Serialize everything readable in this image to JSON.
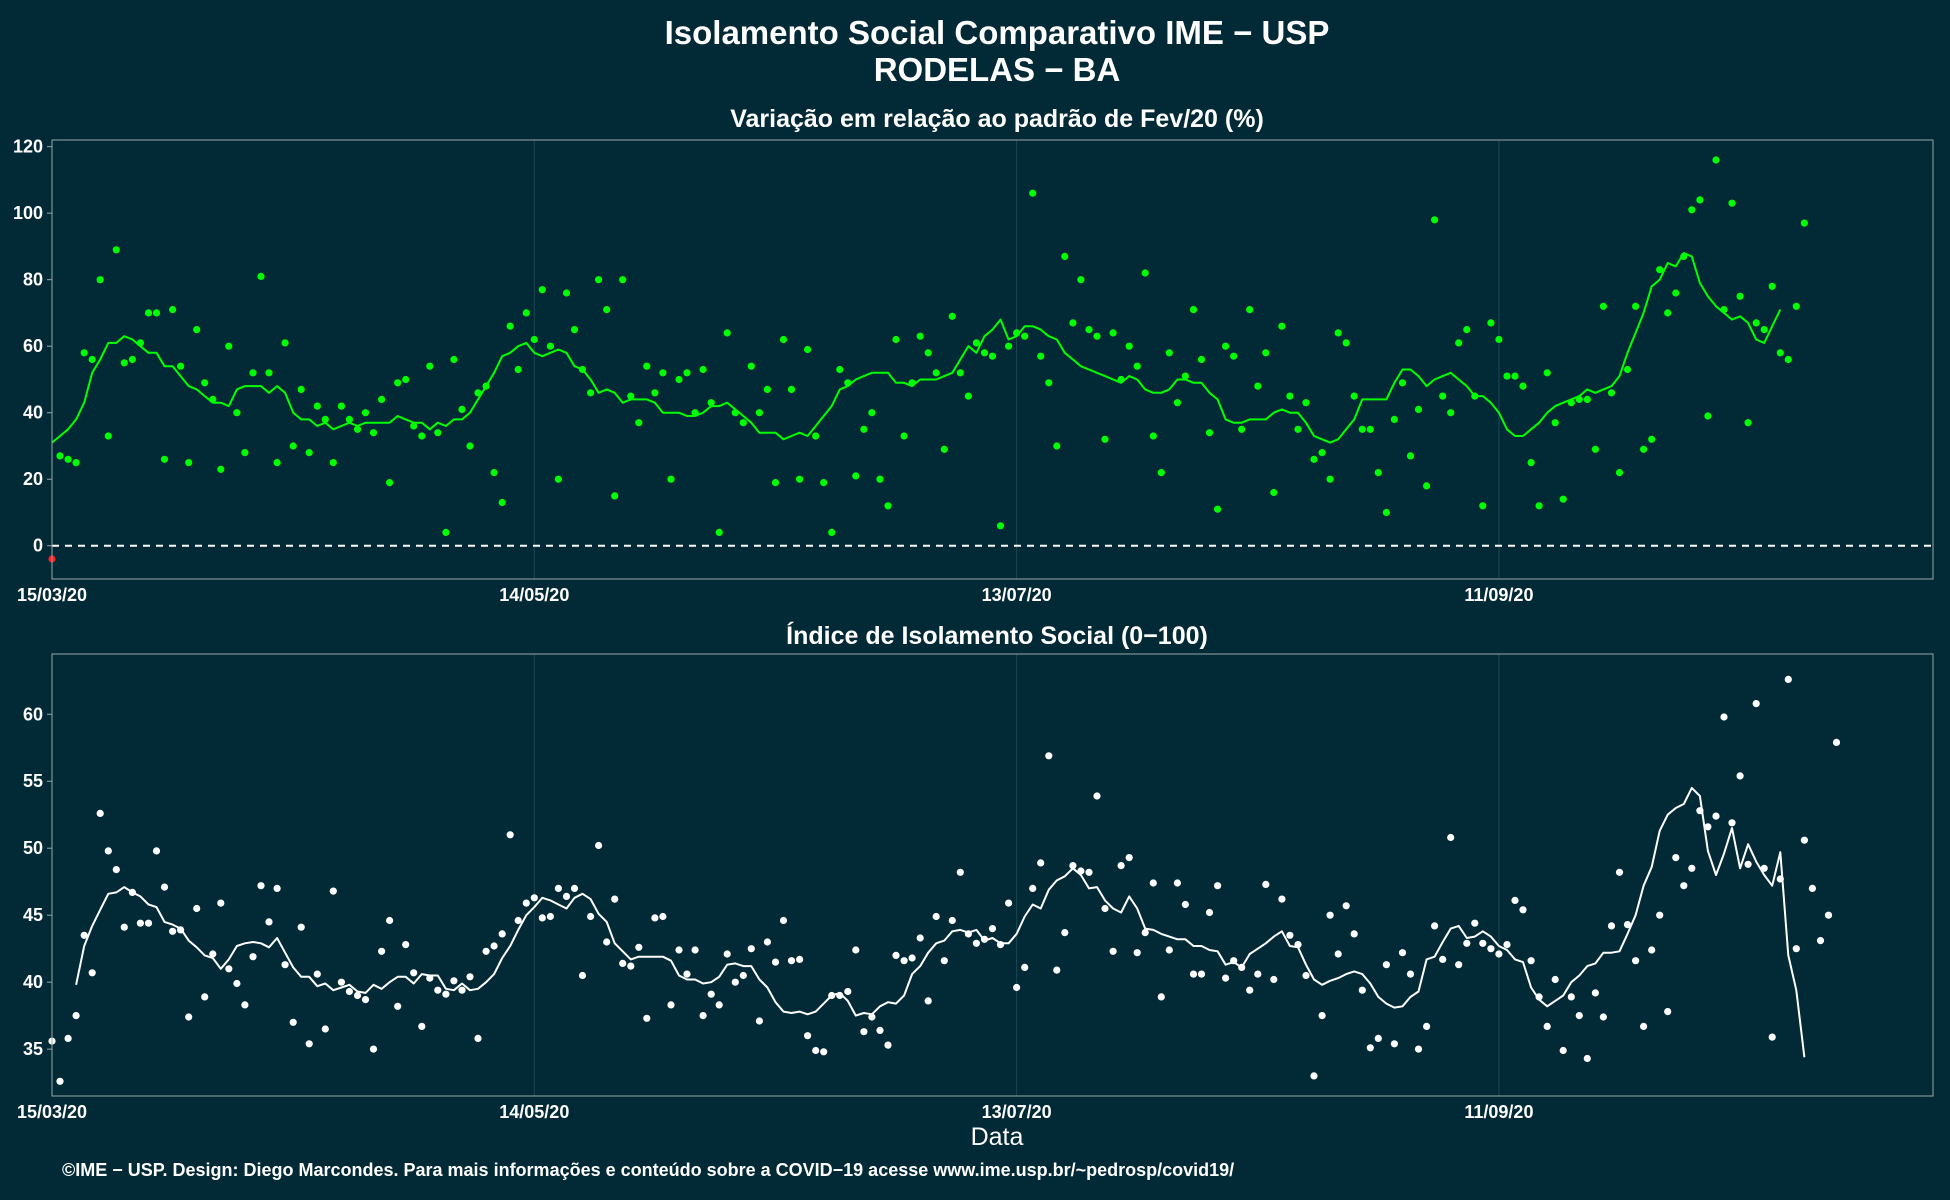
{
  "title_line1": "Isolamento Social Comparativo IME − USP",
  "title_line2": "RODELAS − BA",
  "xlabel": "Data",
  "caption": "©IME − USP. Design: Diego Marcondes. Para mais informações e conteúdo sobre a COVID−19 acesse www.ime.usp.br/~pedrosp/covid19/",
  "colors": {
    "background": "#022a36",
    "panel_border": "#9aa5ab",
    "grid": "#1c4652",
    "variation_series": "#00ff00",
    "negative_point": "#ff2020",
    "index_series": "#ffffff"
  },
  "chart_data": [
    {
      "type": "scatter",
      "title": "Variação em relação ao padrão de Fev/20 (%)",
      "ylim": [
        -10,
        122
      ],
      "yticks": [
        0,
        20,
        40,
        60,
        80,
        100,
        120
      ],
      "xlim": [
        "2020-03-15",
        "2020-11-04"
      ],
      "xticks": [
        "15/03/20",
        "14/05/20",
        "13/07/20",
        "11/09/20"
      ],
      "reference_line": 0,
      "negative_value_color": "red",
      "series": [
        {
          "type": "scatter",
          "x_start": "2020-03-15",
          "values": [
            -4,
            27,
            26,
            25,
            58,
            56,
            80,
            33,
            89,
            55,
            56,
            61,
            70,
            70,
            26,
            71,
            54,
            25,
            65,
            49,
            44,
            23,
            60,
            40,
            28,
            52,
            81,
            52,
            25,
            61,
            30,
            47,
            28,
            42,
            38,
            25,
            42,
            38,
            35,
            40,
            34,
            44,
            19,
            49,
            50,
            36,
            33,
            54,
            34,
            4,
            56,
            41,
            30,
            46,
            48,
            22,
            13,
            66,
            53,
            70,
            62,
            77,
            60,
            20,
            76,
            65,
            53,
            46,
            80,
            71,
            15,
            80,
            45,
            37,
            54,
            46,
            52,
            20,
            50,
            52,
            40,
            53,
            43,
            4,
            64,
            40,
            37,
            54,
            40,
            47,
            19,
            62,
            47,
            20,
            59,
            33,
            19,
            4,
            53,
            49,
            21,
            35,
            40,
            20,
            12,
            62,
            33,
            49,
            63,
            58,
            52,
            29,
            69,
            52,
            45,
            61,
            58,
            57,
            6,
            60,
            64,
            63,
            106,
            57,
            49,
            30,
            87,
            67,
            80,
            65,
            63,
            32,
            64,
            50,
            60,
            54,
            82,
            33,
            22,
            58,
            43,
            51,
            71,
            56,
            34,
            11,
            60,
            57,
            35,
            71,
            48,
            58,
            16,
            66,
            45,
            35,
            43,
            26,
            28,
            20,
            64,
            61,
            45,
            35,
            35,
            22,
            10,
            38,
            49,
            27,
            41,
            18,
            98,
            45,
            40,
            61,
            65,
            45,
            12,
            67,
            62,
            51,
            51,
            48,
            25,
            12,
            52,
            37,
            14,
            43,
            44,
            44,
            29,
            72,
            46,
            22,
            53,
            72,
            29,
            32,
            83,
            70,
            76,
            87,
            101,
            104,
            39,
            116,
            71,
            103,
            75,
            37,
            67,
            65,
            78,
            58,
            56,
            72,
            97
          ]
        },
        {
          "type": "line",
          "name": "",
          "x_start": "2020-03-15",
          "values": [
            31,
            33,
            35,
            38,
            43,
            52,
            56,
            61,
            61,
            63,
            62,
            60,
            58,
            58,
            54,
            54,
            51,
            48,
            47,
            45,
            43,
            43,
            42,
            47,
            48,
            48,
            48,
            46,
            48,
            46,
            40,
            38,
            38,
            36,
            37,
            35,
            36,
            37,
            36,
            37,
            37,
            37,
            37,
            39,
            38,
            37,
            37,
            35,
            37,
            36,
            38,
            38,
            40,
            44,
            48,
            52,
            57,
            58,
            60,
            61,
            58,
            57,
            58,
            59,
            58,
            54,
            53,
            50,
            46,
            47,
            46,
            43,
            44,
            44,
            44,
            43,
            40,
            40,
            40,
            39,
            39,
            40,
            42,
            42,
            43,
            41,
            39,
            37,
            34,
            34,
            34,
            32,
            33,
            34,
            33,
            36,
            39,
            42,
            47,
            48,
            50,
            51,
            52,
            52,
            52,
            49,
            49,
            48,
            50,
            50,
            50,
            51,
            52,
            56,
            60,
            58,
            63,
            65,
            68,
            62,
            63,
            66,
            66,
            65,
            63,
            62,
            58,
            56,
            54,
            53,
            52,
            51,
            50,
            49,
            51,
            50,
            47,
            46,
            46,
            47,
            50,
            50,
            49,
            49,
            46,
            44,
            38,
            37,
            37,
            38,
            38,
            38,
            40,
            41,
            40,
            40,
            37,
            33,
            32,
            31,
            32,
            35,
            38,
            44,
            44,
            44,
            44,
            49,
            53,
            53,
            51,
            48,
            50,
            51,
            52,
            50,
            48,
            45,
            45,
            43,
            40,
            35,
            33,
            33,
            35,
            37,
            40,
            42,
            43,
            44,
            45,
            47,
            46,
            47,
            48,
            51,
            58,
            64,
            70,
            78,
            80,
            85,
            84,
            88,
            87,
            79,
            75,
            72,
            70,
            68,
            69,
            67,
            62,
            61,
            66,
            71
          ]
        }
      ]
    },
    {
      "type": "scatter",
      "title": "Índice de Isolamento Social (0−100)",
      "xlabel": "Data",
      "ylim": [
        31.5,
        64.5
      ],
      "yticks": [
        35,
        40,
        45,
        50,
        55,
        60
      ],
      "xlim": [
        "2020-03-15",
        "2020-11-04"
      ],
      "xticks": [
        "15/03/20",
        "14/05/20",
        "13/07/20",
        "11/09/20"
      ],
      "series": [
        {
          "type": "scatter",
          "x_start": "2020-03-15",
          "values": [
            35.6,
            32.6,
            35.8,
            37.5,
            43.5,
            40.7,
            52.6,
            49.8,
            48.4,
            44.1,
            46.7,
            44.4,
            44.4,
            49.8,
            47.1,
            43.8,
            43.9,
            37.4,
            45.5,
            38.9,
            42.1,
            45.9,
            41.0,
            39.9,
            38.3,
            41.9,
            47.2,
            44.5,
            47.0,
            41.3,
            37.0,
            44.1,
            35.4,
            40.6,
            36.5,
            46.8,
            40.0,
            39.3,
            39.0,
            38.7,
            35.0,
            42.3,
            44.6,
            38.2,
            42.8,
            40.7,
            36.7,
            40.3,
            39.4,
            39.1,
            40.1,
            39.4,
            40.4,
            35.8,
            42.3,
            42.7,
            43.6,
            51.0,
            44.6,
            45.9,
            46.3,
            44.8,
            44.9,
            47.0,
            46.4,
            47.0,
            40.5,
            44.9,
            50.2,
            43.0,
            46.2,
            41.4,
            41.2,
            42.6,
            37.3,
            44.8,
            44.9,
            38.3,
            42.4,
            40.6,
            42.4,
            37.5,
            39.1,
            38.3,
            42.1,
            40.0,
            40.5,
            42.5,
            37.1,
            43.0,
            41.5,
            44.6,
            41.6,
            41.7,
            36.0,
            34.9,
            34.8,
            39.0,
            39.0,
            39.3,
            42.4,
            36.3,
            37.4,
            36.4,
            35.3,
            42.0,
            41.6,
            41.8,
            43.3,
            38.6,
            44.9,
            41.6,
            44.6,
            48.2,
            43.6,
            42.9,
            43.2,
            44.0,
            42.8,
            45.9,
            39.6,
            41.1,
            47.0,
            48.9,
            56.9,
            40.9,
            43.7,
            48.7,
            48.3,
            48.2,
            53.9,
            45.5,
            42.3,
            48.7,
            49.3,
            42.2,
            43.7,
            47.4,
            38.9,
            42.4,
            47.4,
            45.8,
            40.6,
            40.6,
            45.2,
            47.2,
            40.3,
            41.6,
            41.1,
            39.4,
            40.6,
            47.3,
            40.2,
            46.2,
            43.5,
            42.8,
            40.5,
            33.0,
            37.5,
            45.0,
            42.1,
            45.7,
            43.6,
            39.4,
            35.1,
            35.8,
            41.3,
            35.4,
            42.2,
            40.6,
            35.0,
            36.7,
            44.2,
            41.7,
            50.8,
            41.3,
            42.9,
            44.4,
            42.9,
            42.5,
            42.1,
            42.8,
            46.1,
            45.4,
            41.6,
            38.9,
            36.7,
            40.2,
            34.9,
            38.9,
            37.5,
            34.3,
            39.2,
            37.4,
            44.2,
            48.2,
            44.3,
            41.6,
            36.7,
            42.4,
            45.0,
            37.8,
            49.3,
            47.2,
            48.5,
            52.8,
            51.6,
            52.4,
            59.8,
            51.9,
            55.4,
            48.8,
            60.8,
            48.5,
            35.9,
            47.7,
            62.6,
            42.5,
            50.6,
            47.0,
            43.1,
            45.0,
            57.9
          ]
        },
        {
          "type": "line",
          "name": "",
          "x_start": "2020-03-18",
          "values": [
            39.8,
            42.7,
            44.2,
            45.4,
            46.6,
            46.7,
            47.1,
            46.7,
            46.4,
            45.8,
            45.6,
            44.5,
            44.3,
            44.0,
            43.1,
            42.6,
            42.0,
            41.8,
            41.0,
            41.7,
            42.7,
            42.9,
            43.0,
            42.9,
            42.6,
            43.3,
            42.2,
            41.1,
            40.4,
            40.4,
            39.7,
            39.9,
            39.4,
            39.6,
            39.8,
            39.3,
            39.2,
            39.8,
            39.5,
            40.0,
            40.4,
            40.4,
            39.9,
            40.6,
            40.5,
            40.5,
            39.5,
            39.4,
            39.9,
            39.4,
            39.5,
            40.0,
            40.6,
            41.8,
            42.7,
            43.9,
            45.0,
            45.6,
            46.3,
            46.1,
            45.8,
            45.5,
            46.3,
            46.6,
            46.2,
            45.1,
            44.5,
            42.9,
            42.3,
            41.7,
            41.9,
            41.9,
            41.9,
            41.9,
            41.6,
            40.5,
            40.2,
            40.2,
            39.9,
            40.0,
            40.4,
            41.3,
            41.4,
            41.2,
            41.2,
            40.2,
            39.6,
            38.5,
            37.8,
            37.7,
            37.8,
            37.6,
            37.8,
            38.4,
            39.0,
            39.2,
            38.6,
            37.5,
            37.7,
            37.6,
            38.2,
            38.5,
            38.4,
            39.0,
            40.6,
            41.2,
            42.2,
            42.9,
            43.1,
            43.8,
            43.9,
            43.7,
            43.9,
            43.1,
            43.3,
            42.9,
            42.9,
            43.6,
            44.9,
            45.8,
            45.5,
            46.9,
            47.6,
            47.9,
            48.5,
            48.0,
            47.0,
            47.1,
            46.1,
            45.5,
            45.2,
            46.4,
            45.5,
            44.0,
            43.9,
            43.6,
            43.4,
            43.2,
            43.2,
            42.7,
            42.7,
            42.4,
            42.3,
            41.3,
            41.5,
            41.1,
            42.1,
            42.5,
            42.9,
            43.4,
            43.8,
            42.7,
            42.6,
            41.3,
            40.2,
            39.8,
            40.1,
            40.3,
            40.6,
            40.8,
            40.6,
            39.9,
            38.9,
            38.4,
            38.1,
            38.2,
            38.9,
            39.3,
            41.7,
            41.9,
            43.0,
            44.0,
            44.2,
            43.3,
            43.4,
            43.8,
            43.4,
            42.7,
            42.4,
            41.7,
            41.5,
            39.6,
            38.7,
            38.2,
            38.6,
            39.0,
            40.0,
            40.5,
            41.2,
            41.4,
            42.2,
            42.2,
            42.3,
            43.6,
            45.0,
            47.2,
            48.6,
            51.3,
            52.5,
            53.0,
            53.3,
            54.5,
            53.9,
            49.8,
            48.0,
            49.6,
            51.5,
            48.5,
            50.3,
            49.0,
            48.0,
            47.2,
            49.7,
            42.0,
            39.4,
            34.4
          ]
        }
      ]
    }
  ]
}
